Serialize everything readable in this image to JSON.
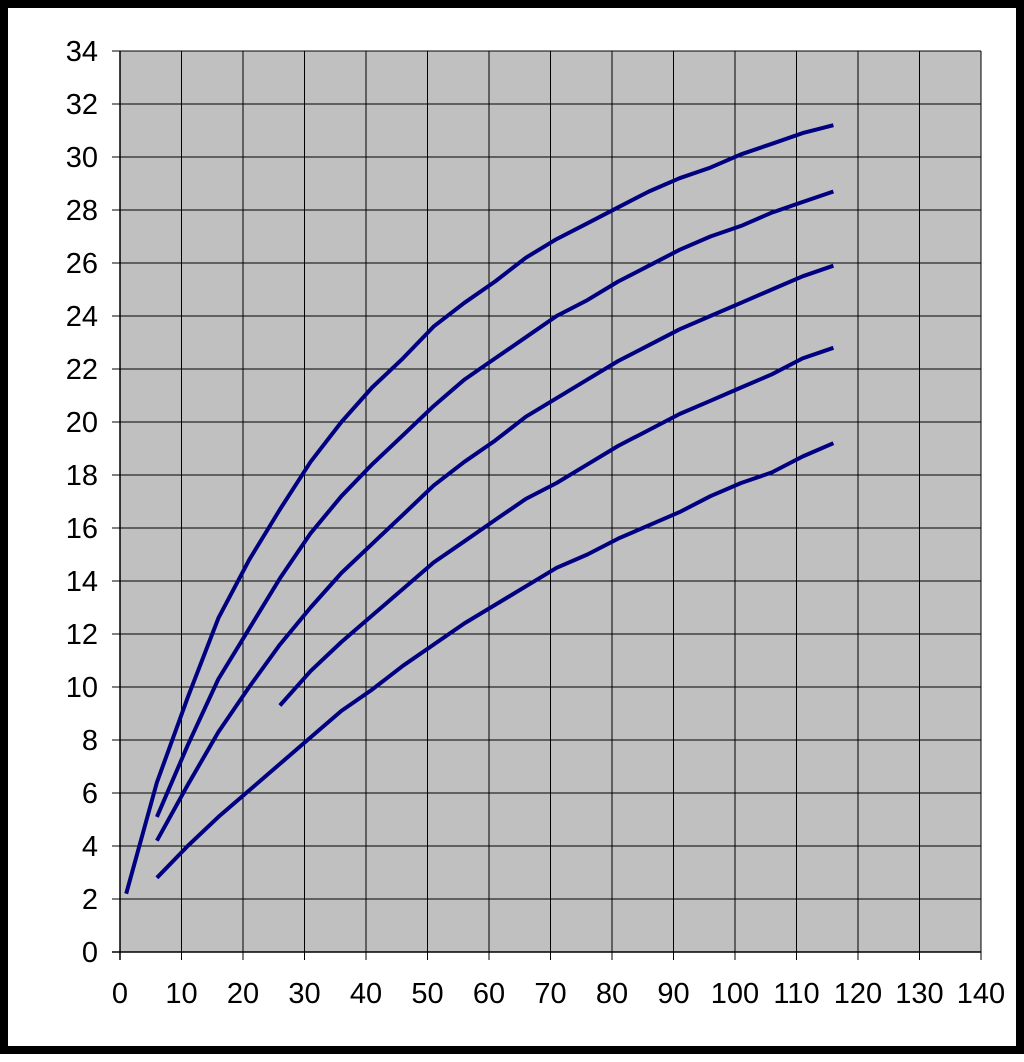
{
  "chart_data": {
    "type": "line",
    "title": "",
    "xlabel": "",
    "ylabel": "",
    "xlim": [
      0,
      140
    ],
    "ylim": [
      0,
      34
    ],
    "x_ticks": [
      0,
      10,
      20,
      30,
      40,
      50,
      60,
      70,
      80,
      90,
      100,
      110,
      120,
      130,
      140
    ],
    "y_ticks": [
      0,
      2,
      4,
      6,
      8,
      10,
      12,
      14,
      16,
      18,
      20,
      22,
      24,
      26,
      28,
      30,
      32,
      34
    ],
    "grid": true,
    "legend": "none",
    "colors": {
      "plot_background": "#c0c0c0",
      "grid": "#000000",
      "line": "#000080",
      "frame": "#000000"
    },
    "series": [
      {
        "points": [
          [
            1,
            2.2
          ],
          [
            6,
            6.4
          ],
          [
            11,
            9.6
          ],
          [
            16,
            12.6
          ],
          [
            21,
            14.8
          ],
          [
            26,
            16.7
          ],
          [
            31,
            18.5
          ],
          [
            36,
            20.0
          ],
          [
            41,
            21.3
          ],
          [
            46,
            22.4
          ],
          [
            51,
            23.6
          ],
          [
            56,
            24.5
          ],
          [
            61,
            25.3
          ],
          [
            66,
            26.2
          ],
          [
            71,
            26.9
          ],
          [
            76,
            27.5
          ],
          [
            81,
            28.1
          ],
          [
            86,
            28.7
          ],
          [
            91,
            29.2
          ],
          [
            96,
            29.6
          ],
          [
            101,
            30.1
          ],
          [
            106,
            30.5
          ],
          [
            111,
            30.9
          ],
          [
            116,
            31.2
          ]
        ]
      },
      {
        "points": [
          [
            6,
            5.1
          ],
          [
            11,
            7.8
          ],
          [
            16,
            10.3
          ],
          [
            21,
            12.2
          ],
          [
            26,
            14.1
          ],
          [
            31,
            15.8
          ],
          [
            36,
            17.2
          ],
          [
            41,
            18.4
          ],
          [
            46,
            19.5
          ],
          [
            51,
            20.6
          ],
          [
            56,
            21.6
          ],
          [
            61,
            22.4
          ],
          [
            66,
            23.2
          ],
          [
            71,
            24.0
          ],
          [
            76,
            24.6
          ],
          [
            81,
            25.3
          ],
          [
            86,
            25.9
          ],
          [
            91,
            26.5
          ],
          [
            96,
            27.0
          ],
          [
            101,
            27.4
          ],
          [
            106,
            27.9
          ],
          [
            111,
            28.3
          ],
          [
            116,
            28.7
          ]
        ]
      },
      {
        "points": [
          [
            6,
            4.2
          ],
          [
            11,
            6.3
          ],
          [
            16,
            8.3
          ],
          [
            21,
            10.0
          ],
          [
            26,
            11.6
          ],
          [
            31,
            13.0
          ],
          [
            36,
            14.3
          ],
          [
            41,
            15.4
          ],
          [
            46,
            16.5
          ],
          [
            51,
            17.6
          ],
          [
            56,
            18.5
          ],
          [
            61,
            19.3
          ],
          [
            66,
            20.2
          ],
          [
            71,
            20.9
          ],
          [
            76,
            21.6
          ],
          [
            81,
            22.3
          ],
          [
            86,
            22.9
          ],
          [
            91,
            23.5
          ],
          [
            96,
            24.0
          ],
          [
            101,
            24.5
          ],
          [
            106,
            25.0
          ],
          [
            111,
            25.5
          ],
          [
            116,
            25.9
          ]
        ]
      },
      {
        "points": [
          [
            26,
            9.3
          ],
          [
            31,
            10.6
          ],
          [
            36,
            11.7
          ],
          [
            41,
            12.7
          ],
          [
            46,
            13.7
          ],
          [
            51,
            14.7
          ],
          [
            56,
            15.5
          ],
          [
            61,
            16.3
          ],
          [
            66,
            17.1
          ],
          [
            71,
            17.7
          ],
          [
            76,
            18.4
          ],
          [
            81,
            19.1
          ],
          [
            86,
            19.7
          ],
          [
            91,
            20.3
          ],
          [
            96,
            20.8
          ],
          [
            101,
            21.3
          ],
          [
            106,
            21.8
          ],
          [
            111,
            22.4
          ],
          [
            116,
            22.8
          ]
        ]
      },
      {
        "points": [
          [
            6,
            2.8
          ],
          [
            11,
            4.0
          ],
          [
            16,
            5.1
          ],
          [
            21,
            6.1
          ],
          [
            26,
            7.1
          ],
          [
            31,
            8.1
          ],
          [
            36,
            9.1
          ],
          [
            41,
            9.9
          ],
          [
            46,
            10.8
          ],
          [
            51,
            11.6
          ],
          [
            56,
            12.4
          ],
          [
            61,
            13.1
          ],
          [
            66,
            13.8
          ],
          [
            71,
            14.5
          ],
          [
            76,
            15.0
          ],
          [
            81,
            15.6
          ],
          [
            86,
            16.1
          ],
          [
            91,
            16.6
          ],
          [
            96,
            17.2
          ],
          [
            101,
            17.7
          ],
          [
            106,
            18.1
          ],
          [
            111,
            18.7
          ],
          [
            116,
            19.2
          ]
        ]
      }
    ]
  }
}
